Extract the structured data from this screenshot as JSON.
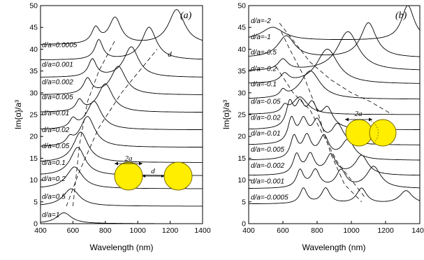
{
  "figure": {
    "panels": [
      {
        "id": "a",
        "panel_label": "(a)",
        "ylabel": "Im{α}/a³",
        "xlabel": "Wavelength (nm)",
        "xticks": [
          "400",
          "600",
          "800",
          "1000",
          "1200",
          "1400"
        ],
        "yticks": [
          "0",
          "5",
          "10",
          "15",
          "20",
          "25",
          "30",
          "35",
          "40",
          "45",
          "50"
        ],
        "inset": {
          "label_2a": "2a",
          "label_d": "d",
          "dashed_label": "d"
        }
      },
      {
        "id": "b",
        "panel_label": "(b)",
        "ylabel": "Im{α}/a³",
        "xlabel": "Wavelength (nm)",
        "xticks": [
          "400",
          "600",
          "800",
          "1000",
          "1200",
          "1400"
        ],
        "yticks": [
          "0",
          "5",
          "10",
          "15",
          "20",
          "25",
          "30",
          "35",
          "40",
          "45",
          "50"
        ],
        "inset": {
          "label_2a": "2a"
        }
      }
    ],
    "colors": {
      "particle_fill": "#ffee00",
      "particle_stroke": "#7a6a00",
      "line": "#000000"
    }
  },
  "chart_data": [
    {
      "type": "line",
      "panel": "a",
      "xlim": [
        400,
        1400
      ],
      "ylim": [
        0,
        50
      ],
      "xlabel": "Wavelength (nm)",
      "ylabel": "Im{α}/a³",
      "grid": false,
      "note": "curves offset vertically; each labeled by d/a",
      "series": [
        {
          "name": "d/a=1",
          "baseline": 0,
          "label_y": 1.5,
          "peaks": [
            [
              545,
              2.5,
              55
            ]
          ]
        },
        {
          "name": "d/a=0.5",
          "baseline": 4,
          "label_y": 5.7,
          "peaks": [
            [
              590,
              4.0,
              60
            ]
          ]
        },
        {
          "name": "d/a=0.2",
          "baseline": 8,
          "label_y": 9.8,
          "peaks": [
            [
              610,
              5.0,
              60
            ]
          ]
        },
        {
          "name": "d/a=0.1",
          "baseline": 11,
          "label_y": 13.5,
          "peaks": [
            [
              630,
              6.5,
              55
            ]
          ]
        },
        {
          "name": "d/a=0.05",
          "baseline": 14,
          "label_y": 17.3,
          "peaks": [
            [
              648,
              7.0,
              55
            ]
          ]
        },
        {
          "name": "d/a=0.02",
          "baseline": 17.5,
          "label_y": 21.0,
          "peaks": [
            [
              580,
              1.5,
              25
            ],
            [
              690,
              7.0,
              55
            ]
          ]
        },
        {
          "name": "d/a=0.01",
          "baseline": 21.5,
          "label_y": 24.8,
          "peaks": [
            [
              600,
              2.0,
              25
            ],
            [
              730,
              6.5,
              55
            ]
          ]
        },
        {
          "name": "d/a=0.005",
          "baseline": 25.5,
          "label_y": 28.5,
          "peaks": [
            [
              640,
              2.5,
              25
            ],
            [
              800,
              6.5,
              55
            ]
          ]
        },
        {
          "name": "d/a=0.002",
          "baseline": 29.5,
          "label_y": 32.0,
          "peaks": [
            [
              690,
              3.5,
              30
            ],
            [
              880,
              6.5,
              55
            ]
          ]
        },
        {
          "name": "d/a=0.001",
          "baseline": 33.5,
          "label_y": 36.0,
          "peaks": [
            [
              720,
              4.0,
              30
            ],
            [
              960,
              7.0,
              55
            ]
          ]
        },
        {
          "name": "d/a=0.0005",
          "baseline": 37.5,
          "label_y": 40.5,
          "peaks": [
            [
              760,
              4.5,
              30
            ],
            [
              1070,
              7.5,
              55
            ]
          ]
        },
        {
          "name": "",
          "baseline": 41.0,
          "label_y": 44.0,
          "peaks": [
            [
              740,
              3.5,
              30
            ],
            [
              860,
              6.0,
              45
            ],
            [
              1240,
              8.0,
              60
            ]
          ]
        }
      ]
    },
    {
      "type": "line",
      "panel": "b",
      "xlim": [
        400,
        1400
      ],
      "ylim": [
        0,
        50
      ],
      "xlabel": "Wavelength (nm)",
      "ylabel": "Im{α}/a³",
      "grid": false,
      "note": "curves offset vertically; each labeled by d/a",
      "series": [
        {
          "name": "d/a=-0.0005",
          "baseline": 4.5,
          "label_y": 5.5,
          "peaks": [
            [
              720,
              3.5,
              25
            ],
            [
              850,
              3.5,
              30
            ],
            [
              1060,
              3.5,
              35
            ],
            [
              1320,
              3.0,
              45
            ]
          ]
        },
        {
          "name": "d/a=-0.001",
          "baseline": 8,
          "label_y": 9.2,
          "peaks": [
            [
              700,
              4.0,
              25
            ],
            [
              790,
              4.0,
              30
            ],
            [
              940,
              4.0,
              35
            ],
            [
              1130,
              5.0,
              50
            ]
          ]
        },
        {
          "name": "d/a=-0.002",
          "baseline": 11,
          "label_y": 12.8,
          "peaks": [
            [
              680,
              4.5,
              25
            ],
            [
              760,
              4.5,
              30
            ],
            [
              880,
              4.5,
              35
            ],
            [
              1060,
              4.5,
              45
            ]
          ]
        },
        {
          "name": "d/a=-0.005",
          "baseline": 14.5,
          "label_y": 16.5,
          "peaks": [
            [
              665,
              5.0,
              25
            ],
            [
              740,
              5.0,
              30
            ],
            [
              840,
              5.0,
              35
            ],
            [
              980,
              4.5,
              45
            ]
          ]
        },
        {
          "name": "d/a=-0.01",
          "baseline": 18,
          "label_y": 20.2,
          "peaks": [
            [
              650,
              5.5,
              25
            ],
            [
              720,
              5.0,
              30
            ],
            [
              800,
              5.0,
              35
            ],
            [
              920,
              4.5,
              40
            ]
          ]
        },
        {
          "name": "d/a=-0.02",
          "baseline": 21.5,
          "label_y": 23.8,
          "peaks": [
            [
              640,
              5.5,
              25
            ],
            [
              700,
              5.0,
              30
            ],
            [
              770,
              5.0,
              35
            ],
            [
              860,
              4.5,
              40
            ]
          ]
        },
        {
          "name": "d/a=-0.05",
          "baseline": 25,
          "label_y": 27.5,
          "peaks": [
            [
              610,
              1.5,
              20
            ],
            [
              700,
              4.0,
              55
            ]
          ]
        },
        {
          "name": "d/a=-0.1",
          "baseline": 28.5,
          "label_y": 31.5,
          "peaks": [
            [
              600,
              1.5,
              20
            ],
            [
              760,
              6.5,
              70
            ]
          ]
        },
        {
          "name": "d/a=-0.2",
          "baseline": 32,
          "label_y": 35.0,
          "peaks": [
            [
              610,
              2.0,
              30
            ],
            [
              860,
              8.0,
              75
            ]
          ]
        },
        {
          "name": "d/a=-0.5",
          "baseline": 35,
          "label_y": 38.8,
          "peaks": [
            [
              600,
              2.5,
              35
            ],
            [
              980,
              9.0,
              75
            ]
          ]
        },
        {
          "name": "d/a=-1",
          "baseline": 38,
          "label_y": 42.3,
          "peaks": [
            [
              620,
              5.0,
              60
            ],
            [
              1100,
              8.0,
              55
            ]
          ]
        },
        {
          "name": "d/a=-2",
          "baseline": 42,
          "label_y": 46.0,
          "peaks": [
            [
              540,
              3.0,
              80
            ],
            [
              1330,
              8.0,
              45
            ]
          ]
        }
      ]
    }
  ]
}
